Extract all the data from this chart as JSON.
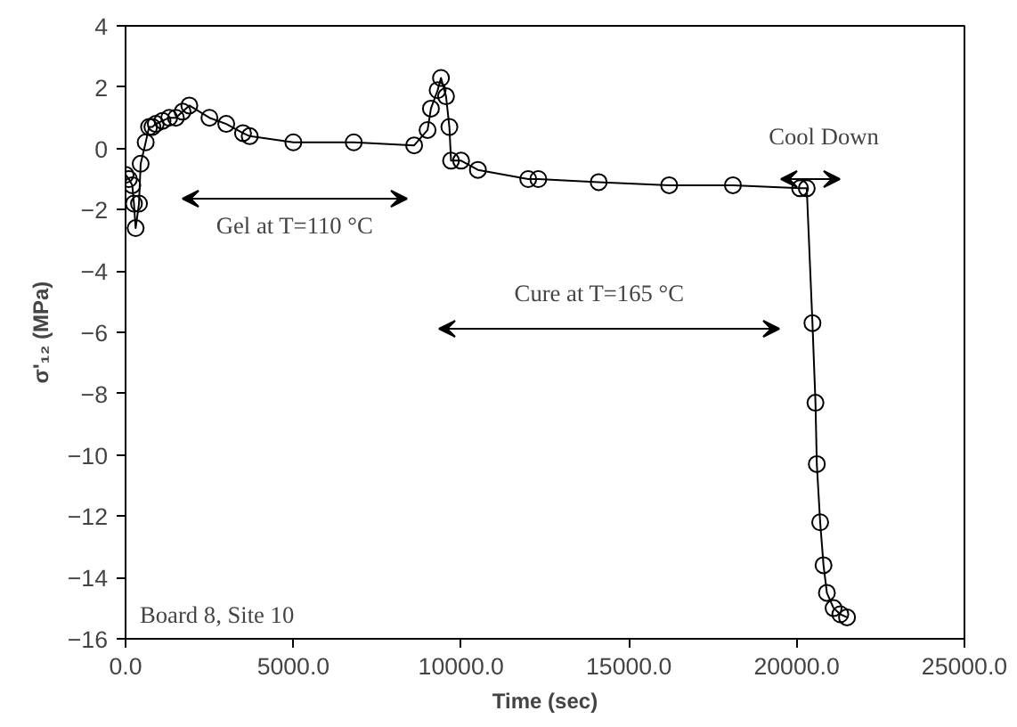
{
  "chart_data": {
    "type": "line",
    "xlabel": "Time (sec)",
    "ylabel": "σ'₁₂ (MPa)",
    "xlim": [
      0,
      25000
    ],
    "ylim": [
      -16,
      4
    ],
    "xticks": [
      {
        "value": 0,
        "label": "0.0"
      },
      {
        "value": 5000,
        "label": "5000.0"
      },
      {
        "value": 10000,
        "label": "10000.0"
      },
      {
        "value": 15000,
        "label": "15000.0"
      },
      {
        "value": 20000,
        "label": "20000.0"
      },
      {
        "value": 25000,
        "label": "25000.0"
      }
    ],
    "yticks": [
      -16,
      -14,
      -12,
      -10,
      -8,
      -6,
      -4,
      -2,
      0,
      2,
      4
    ],
    "grid": false,
    "marker": "circle",
    "line_style": "solid",
    "x": [
      0,
      100,
      200,
      250,
      300,
      400,
      450,
      600,
      700,
      800,
      900,
      1100,
      1300,
      1500,
      1700,
      1900,
      2500,
      3000,
      3500,
      3700,
      5000,
      6800,
      8600,
      9000,
      9100,
      9300,
      9400,
      9550,
      9650,
      9700,
      10000,
      10500,
      12000,
      12300,
      14100,
      16200,
      18100,
      20100,
      20300,
      20470,
      20560,
      20600,
      20700,
      20800,
      20900,
      21100,
      21300,
      21500
    ],
    "series": [
      {
        "color": "#000000",
        "values": [
          -0.86,
          -1.0,
          -1.2,
          -1.8,
          -2.6,
          -1.8,
          -0.5,
          0.2,
          0.7,
          0.7,
          0.8,
          0.9,
          1.0,
          1.0,
          1.2,
          1.4,
          1.0,
          0.8,
          0.5,
          0.4,
          0.2,
          0.2,
          0.1,
          0.6,
          1.3,
          1.9,
          2.3,
          1.7,
          0.7,
          -0.4,
          -0.4,
          -0.7,
          -1.0,
          -1.0,
          -1.1,
          -1.2,
          -1.2,
          -1.3,
          -1.3,
          -5.7,
          -8.3,
          -10.3,
          -12.2,
          -13.6,
          -14.5,
          -15.0,
          -15.2,
          -15.3
        ]
      }
    ],
    "annotations": [
      "Gel at T=110 °C",
      "Cure at T=165 °C",
      "Cool Down",
      "Board 8, Site 10"
    ]
  }
}
